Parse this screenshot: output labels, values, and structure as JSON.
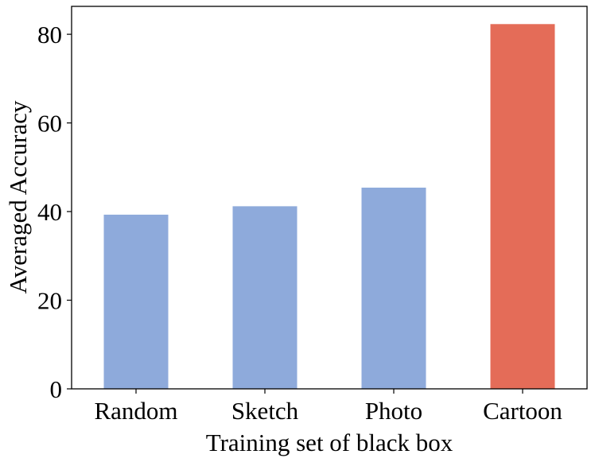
{
  "chart_data": {
    "type": "bar",
    "title": "",
    "xlabel": "Training set of black box",
    "ylabel": "Averaged Accuracy",
    "categories": [
      "Random",
      "Sketch",
      "Photo",
      "Cartoon"
    ],
    "values": [
      39.3,
      41.2,
      45.4,
      82.3
    ],
    "bar_colors": [
      "#8eaadb",
      "#8eaadb",
      "#8eaadb",
      "#e46c58"
    ],
    "ylim": [
      0,
      86.3
    ],
    "yticks": [
      0,
      20,
      40,
      60,
      80
    ],
    "grid": false,
    "legend": "none"
  }
}
